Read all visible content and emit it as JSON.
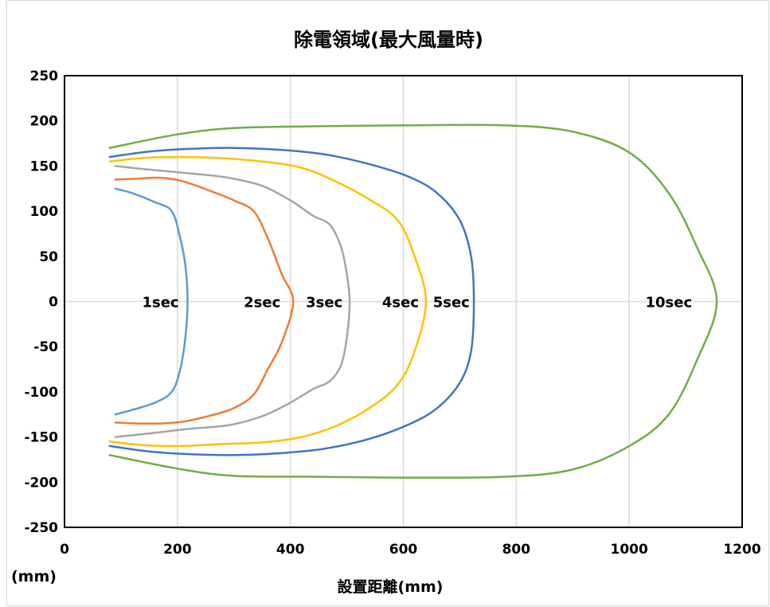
{
  "chart_data": {
    "type": "line",
    "title": "除電領域(最大風量時)",
    "xlabel": "設置距離(mm)",
    "ylabel": "",
    "unit_label": "(mm)",
    "xlim": [
      0,
      1200
    ],
    "ylim": [
      -250,
      250
    ],
    "x_ticks": [
      0,
      200,
      400,
      600,
      800,
      1000,
      1200
    ],
    "y_ticks": [
      250,
      200,
      150,
      100,
      50,
      0,
      -50,
      -100,
      -150,
      -200,
      -250
    ],
    "grid": {
      "vertical": true,
      "horizontal": false,
      "zero_line": true
    },
    "series": [
      {
        "label": "1sec",
        "color": "#5B9BD5",
        "label_at": [
          170,
          0
        ],
        "points": [
          [
            90,
            125
          ],
          [
            120,
            120
          ],
          [
            160,
            110
          ],
          [
            190,
            100
          ],
          [
            205,
            70
          ],
          [
            214,
            40
          ],
          [
            218,
            0
          ],
          [
            214,
            -40
          ],
          [
            205,
            -75
          ],
          [
            190,
            -100
          ],
          [
            160,
            -112
          ],
          [
            120,
            -120
          ],
          [
            90,
            -125
          ]
        ]
      },
      {
        "label": "2sec",
        "color": "#ED7D31",
        "label_at": [
          350,
          0
        ],
        "points": [
          [
            90,
            135
          ],
          [
            130,
            136
          ],
          [
            170,
            137
          ],
          [
            210,
            133
          ],
          [
            260,
            122
          ],
          [
            300,
            112
          ],
          [
            335,
            100
          ],
          [
            360,
            70
          ],
          [
            385,
            30
          ],
          [
            405,
            0
          ],
          [
            385,
            -45
          ],
          [
            360,
            -75
          ],
          [
            335,
            -103
          ],
          [
            300,
            -118
          ],
          [
            260,
            -126
          ],
          [
            210,
            -133
          ],
          [
            170,
            -135
          ],
          [
            130,
            -135
          ],
          [
            90,
            -134
          ]
        ]
      },
      {
        "label": "3sec",
        "color": "#A5A5A5",
        "label_at": [
          460,
          0
        ],
        "points": [
          [
            90,
            150
          ],
          [
            150,
            146
          ],
          [
            220,
            142
          ],
          [
            290,
            137
          ],
          [
            350,
            128
          ],
          [
            400,
            112
          ],
          [
            440,
            95
          ],
          [
            470,
            85
          ],
          [
            490,
            60
          ],
          [
            500,
            30
          ],
          [
            505,
            0
          ],
          [
            500,
            -40
          ],
          [
            490,
            -70
          ],
          [
            470,
            -88
          ],
          [
            440,
            -97
          ],
          [
            400,
            -112
          ],
          [
            350,
            -127
          ],
          [
            290,
            -137
          ],
          [
            220,
            -141
          ],
          [
            150,
            -146
          ],
          [
            90,
            -150
          ]
        ]
      },
      {
        "label": "4sec",
        "color": "#FFC000",
        "label_at": [
          595,
          0
        ],
        "points": [
          [
            80,
            155
          ],
          [
            140,
            159
          ],
          [
            200,
            160
          ],
          [
            270,
            159
          ],
          [
            350,
            155
          ],
          [
            420,
            148
          ],
          [
            480,
            133
          ],
          [
            540,
            113
          ],
          [
            590,
            90
          ],
          [
            620,
            50
          ],
          [
            640,
            0
          ],
          [
            620,
            -55
          ],
          [
            590,
            -92
          ],
          [
            540,
            -118
          ],
          [
            480,
            -138
          ],
          [
            420,
            -150
          ],
          [
            350,
            -156
          ],
          [
            270,
            -158
          ],
          [
            200,
            -160
          ],
          [
            140,
            -159
          ],
          [
            80,
            -155
          ]
        ]
      },
      {
        "label": "5sec",
        "color": "#4472C4",
        "label_at": [
          685,
          0
        ],
        "points": [
          [
            80,
            160
          ],
          [
            150,
            166
          ],
          [
            220,
            169
          ],
          [
            300,
            170
          ],
          [
            380,
            168
          ],
          [
            460,
            163
          ],
          [
            540,
            152
          ],
          [
            610,
            138
          ],
          [
            660,
            120
          ],
          [
            700,
            90
          ],
          [
            720,
            50
          ],
          [
            725,
            0
          ],
          [
            720,
            -55
          ],
          [
            700,
            -90
          ],
          [
            660,
            -118
          ],
          [
            610,
            -136
          ],
          [
            540,
            -152
          ],
          [
            460,
            -163
          ],
          [
            380,
            -168
          ],
          [
            300,
            -170
          ],
          [
            220,
            -169
          ],
          [
            150,
            -166
          ],
          [
            80,
            -160
          ]
        ]
      },
      {
        "label": "10sec",
        "color": "#70AD47",
        "label_at": [
          1070,
          0
        ],
        "points": [
          [
            80,
            170
          ],
          [
            200,
            185
          ],
          [
            300,
            192
          ],
          [
            450,
            194
          ],
          [
            600,
            195
          ],
          [
            780,
            195
          ],
          [
            900,
            188
          ],
          [
            1000,
            165
          ],
          [
            1070,
            120
          ],
          [
            1120,
            60
          ],
          [
            1155,
            0
          ],
          [
            1120,
            -65
          ],
          [
            1070,
            -125
          ],
          [
            1000,
            -160
          ],
          [
            900,
            -186
          ],
          [
            780,
            -194
          ],
          [
            600,
            -195
          ],
          [
            450,
            -194
          ],
          [
            300,
            -193
          ],
          [
            200,
            -185
          ],
          [
            80,
            -170
          ]
        ]
      }
    ]
  }
}
